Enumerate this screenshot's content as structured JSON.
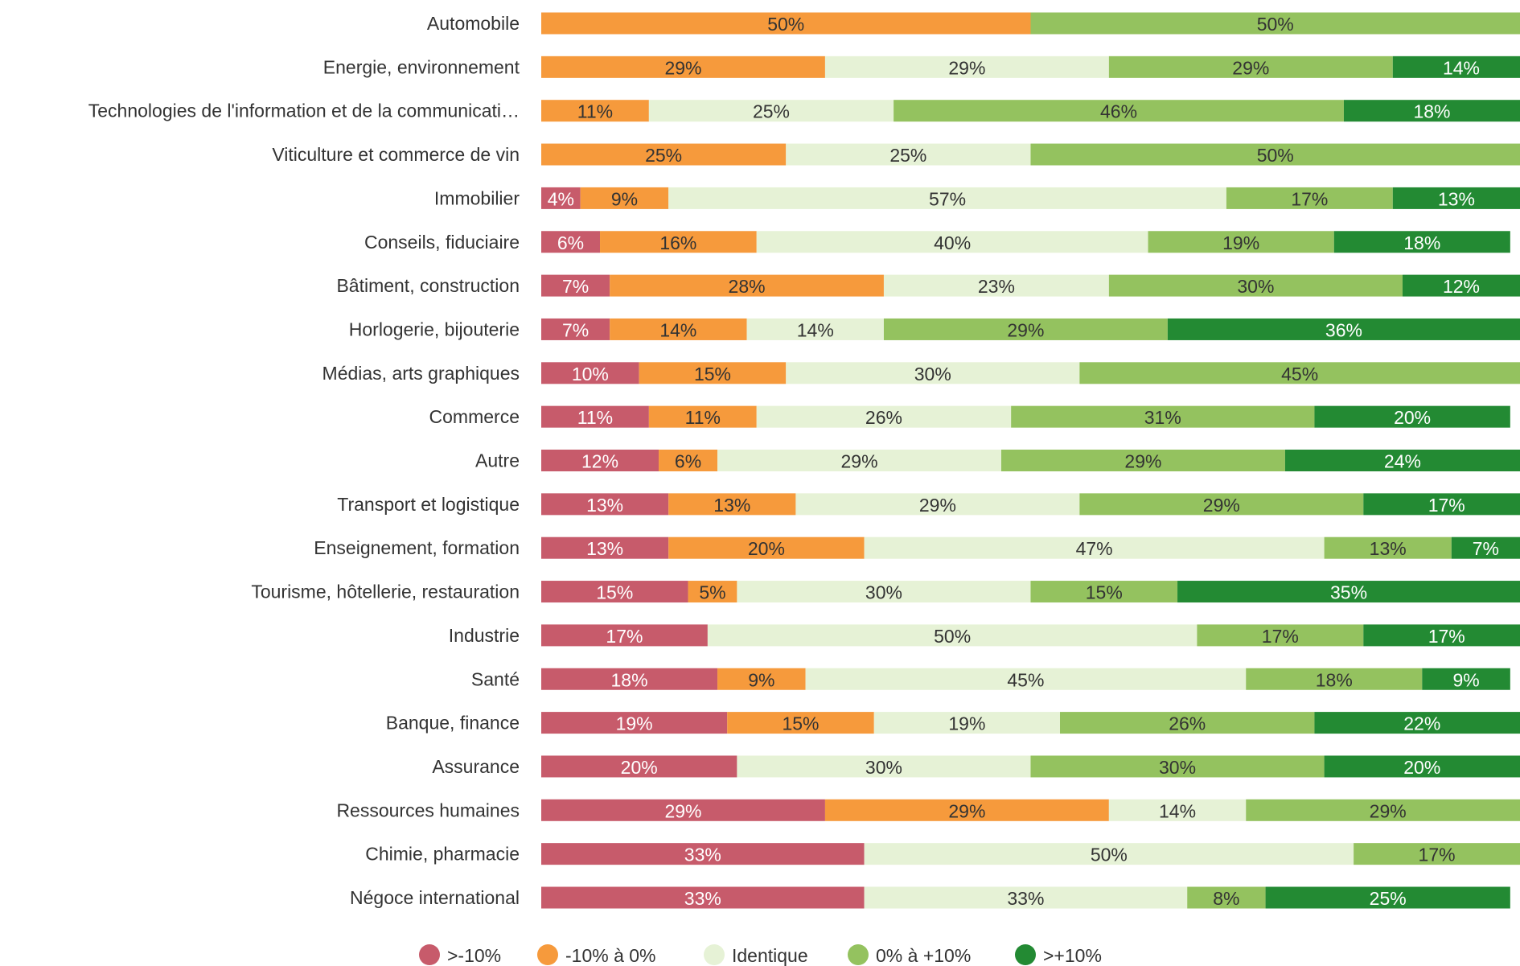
{
  "chart_data": {
    "type": "stacked-bar-horizontal",
    "categories": [
      "Automobile",
      "Energie, environnement",
      "Technologies de l'information et de la communicati…",
      "Viticulture et commerce de vin",
      "Immobilier",
      "Conseils, fiduciaire",
      "Bâtiment, construction",
      "Horlogerie, bijouterie",
      "Médias, arts graphiques",
      "Commerce",
      "Autre",
      "Transport et logistique",
      "Enseignement, formation",
      "Tourisme, hôtellerie, restauration",
      "Industrie",
      "Santé",
      "Banque, finance",
      "Assurance",
      "Ressources humaines",
      "Chimie, pharmacie",
      "Négoce international"
    ],
    "xlim": [
      0,
      100
    ],
    "legend": "bottom",
    "series": [
      {
        "name": ">-10%",
        "color": "#c75b6b",
        "label_color": "#ffffff",
        "values": [
          null,
          null,
          null,
          null,
          4,
          6,
          7,
          7,
          10,
          11,
          12,
          13,
          13,
          15,
          17,
          18,
          19,
          20,
          29,
          33,
          33
        ],
        "value_labels": [
          null,
          null,
          null,
          null,
          "4%",
          "6%",
          "7%",
          "7%",
          "10%",
          "11%",
          "12%",
          "13%",
          "13%",
          "15%",
          "17%",
          "18%",
          "19%",
          "20%",
          "29%",
          "33%",
          "33%"
        ]
      },
      {
        "name": "-10% à 0%",
        "color": "#f69a3c",
        "label_color": "#333333",
        "values": [
          50,
          29,
          11,
          25,
          9,
          16,
          28,
          14,
          15,
          11,
          6,
          13,
          20,
          5,
          null,
          9,
          15,
          null,
          29,
          null,
          null
        ],
        "value_labels": [
          "50%",
          "29%",
          "11%",
          "25%",
          "9%",
          "16%",
          "28%",
          "14%",
          "15%",
          "11%",
          "6%",
          "13%",
          "20%",
          "5%",
          null,
          "9%",
          "15%",
          null,
          "29%",
          null,
          null
        ]
      },
      {
        "name": "Identique",
        "color": "#e6f2d6",
        "label_color": "#333333",
        "values": [
          null,
          29,
          25,
          25,
          57,
          40,
          23,
          14,
          30,
          26,
          29,
          29,
          47,
          30,
          50,
          45,
          19,
          30,
          14,
          50,
          33
        ],
        "value_labels": [
          null,
          "29%",
          "25%",
          "25%",
          "57%",
          "40%",
          "23%",
          "14%",
          "30%",
          "26%",
          "29%",
          "29%",
          "47%",
          "30%",
          "50%",
          "45%",
          "19%",
          "30%",
          "14%",
          "50%",
          "33%"
        ]
      },
      {
        "name": "0% à +10%",
        "color": "#94c25f",
        "label_color": "#333333",
        "values": [
          50,
          29,
          46,
          50,
          17,
          19,
          30,
          29,
          45,
          31,
          29,
          29,
          13,
          15,
          17,
          18,
          26,
          30,
          29,
          17,
          8
        ],
        "value_labels": [
          "50%",
          "29%",
          "46%",
          "50%",
          "17%",
          "19%",
          "30%",
          "29%",
          "45%",
          "31%",
          "29%",
          "29%",
          "13%",
          "15%",
          "17%",
          "18%",
          "26%",
          "30%",
          "29%",
          "17%",
          "8%"
        ]
      },
      {
        "name": ">+10%",
        "color": "#238a33",
        "label_color": "#ffffff",
        "values": [
          null,
          14,
          18,
          null,
          13,
          18,
          12,
          36,
          null,
          20,
          24,
          17,
          7,
          35,
          17,
          9,
          22,
          20,
          null,
          null,
          25
        ],
        "value_labels": [
          null,
          "14%",
          "18%",
          null,
          "13%",
          "18%",
          "12%",
          "36%",
          null,
          "20%",
          "24%",
          "17%",
          "7%",
          "35%",
          "17%",
          "9%",
          "22%",
          "20%",
          null,
          null,
          "25%"
        ]
      }
    ]
  }
}
